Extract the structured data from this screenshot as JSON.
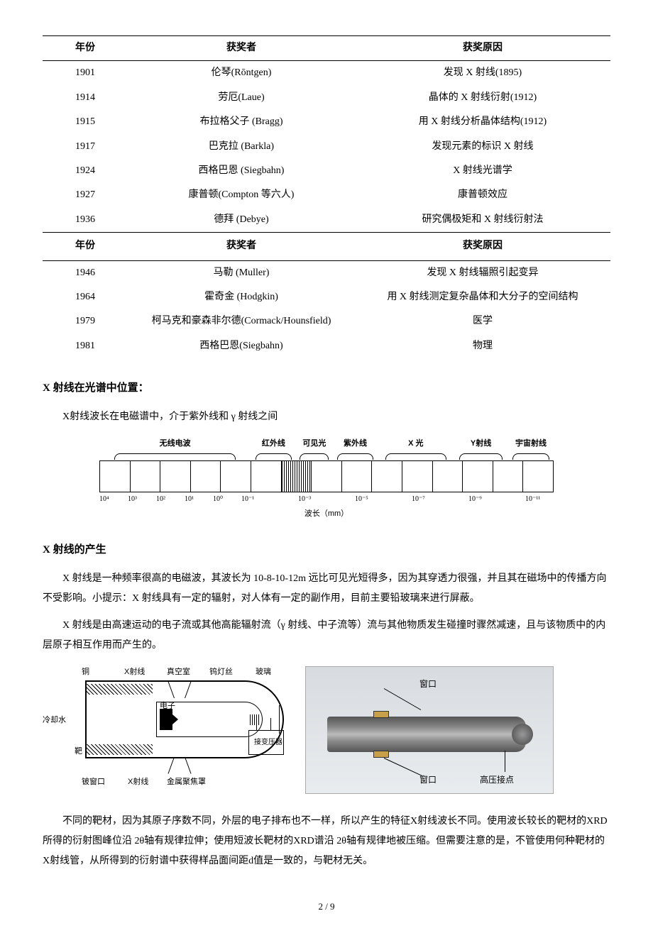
{
  "table1_headers": {
    "year": "年份",
    "winner": "获奖者",
    "reason": "获奖原因"
  },
  "table1_rows": [
    {
      "year": "1901",
      "winner": "伦琴(Rōntgen)",
      "reason": "发现 X 射线(1895)"
    },
    {
      "year": "1914",
      "winner": "劳厄(Laue)",
      "reason": "晶体的 X 射线衍射(1912)"
    },
    {
      "year": "1915",
      "winner": "布拉格父子 (Bragg)",
      "reason": "用 X 射线分析晶体结构(1912)"
    },
    {
      "year": "1917",
      "winner": "巴克拉 (Barkla)",
      "reason": "发现元素的标识 X 射线"
    },
    {
      "year": "1924",
      "winner": "西格巴恩 (Siegbahn)",
      "reason": "X 射线光谱学"
    },
    {
      "year": "1927",
      "winner": "康普顿(Compton 等六人)",
      "reason": "康普顿效应"
    },
    {
      "year": "1936",
      "winner": "德拜 (Debye)",
      "reason": "研究偶极矩和 X 射线衍射法"
    }
  ],
  "mid_headers": {
    "year": "年份",
    "winner": "获奖者",
    "reason": "获奖原因"
  },
  "table2_rows": [
    {
      "year": "1946",
      "winner": "马勒 (Muller)",
      "reason": "发现 X 射线辐照引起变异"
    },
    {
      "year": "1964",
      "winner": "霍奇金 (Hodgkin)",
      "reason": "用 X 射线测定复杂晶体和大分子的空间结构"
    },
    {
      "year": "1979",
      "winner": "柯马克和豪森非尔德(Cormack/Hounsfield)",
      "reason": "医学"
    },
    {
      "year": "1981",
      "winner": "西格巴恩(Siegbahn)",
      "reason": "物理"
    }
  ],
  "section_position": "X 射线在光谱中位置：",
  "position_text": "X射线波长在电磁谱中，介于紫外线和 γ 射线之间",
  "spectrum": {
    "bands": {
      "radio": "无线电波",
      "ir": "红外线",
      "visible": "可见光",
      "uv": "紫外线",
      "xray": "X 光",
      "gamma": "Y射线",
      "cosmic": "宇宙射线"
    },
    "axis_label": "波长（mm）",
    "ticks": [
      "10⁴",
      "10³",
      "10²",
      "10¹",
      "10⁰",
      "10⁻¹",
      "",
      "10⁻³",
      "",
      "10⁻⁵",
      "",
      "10⁻⁷",
      "",
      "10⁻⁹",
      "",
      "10⁻¹¹"
    ]
  },
  "section_generation": "X 射线的产生",
  "gen_p1": "X 射线是一种频率很高的电磁波，其波长为 10-8-10-12m 远比可见光短得多，因为其穿透力很强，并且其在磁场中的传播方向不受影响。小提示：X 射线具有一定的辐射，对人体有一定的副作用，目前主要铅玻璃来进行屏蔽。",
  "gen_p2": "X 射线是由高速运动的电子流或其他高能辐射流（γ 射线、中子流等）流与其他物质发生碰撞时骤然减速，且与该物质中的内层原子相互作用而产生的。",
  "tube_labels": {
    "anode": "铜",
    "xray_top": "X射线",
    "vacuum": "真空室",
    "filament": "钨灯丝",
    "glass": "玻璃",
    "cooling": "冷却水",
    "electron": "电子",
    "transformer": "接变压器",
    "target": "靶",
    "be_window": "铍窗口",
    "xray_bottom": "X射线",
    "focus": "金属聚焦罩"
  },
  "photo_labels": {
    "window": "窗口",
    "hv": "高压接点"
  },
  "gen_p3": "不同的靶材，因为其原子序数不同，外层的电子排布也不一样，所以产生的特征X射线波长不同。使用波长较长的靶材的XRD所得的衍射图峰位沿 2θ轴有规律拉伸；使用短波长靶材的XRD谱沿 2θ轴有规律地被压缩。但需要注意的是，不管使用何种靶材的X射线管，从所得到的衍射谱中获得样品面间距d值是一致的，与靶材无关。",
  "page_number": "2 / 9"
}
